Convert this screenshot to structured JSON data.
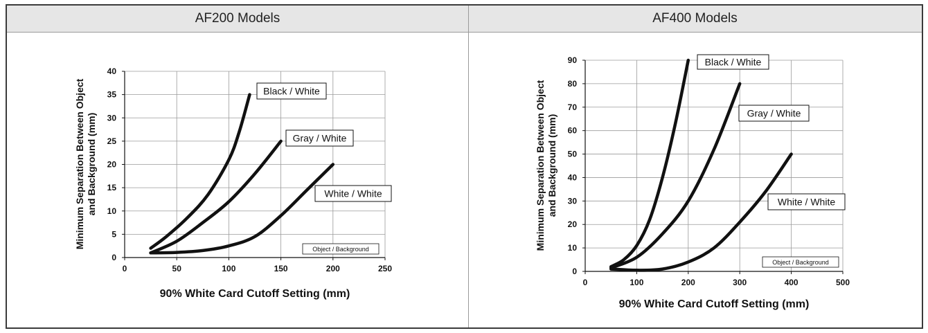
{
  "headers": {
    "left": "AF200 Models",
    "right": "AF400 Models"
  },
  "chart_data": [
    {
      "type": "line",
      "title": "AF200 Models",
      "xlabel": "90% White Card Cutoff Setting (mm)",
      "ylabel_lines": [
        "Minimum Separation Between Object",
        "and Background (mm)"
      ],
      "xlim": [
        0,
        250
      ],
      "ylim": [
        0,
        40
      ],
      "xticks": [
        0,
        50,
        100,
        150,
        200,
        250
      ],
      "yticks": [
        0,
        5,
        10,
        15,
        20,
        25,
        30,
        35,
        40
      ],
      "grid": true,
      "legend_note": "Object / Background",
      "series": [
        {
          "name": "Black / White",
          "x": [
            25,
            40,
            60,
            80,
            100,
            110,
            120
          ],
          "y": [
            2,
            4.5,
            8.5,
            13.5,
            21,
            27,
            35
          ]
        },
        {
          "name": "Gray / White",
          "x": [
            25,
            50,
            75,
            100,
            125,
            150
          ],
          "y": [
            1,
            3.5,
            7.5,
            12,
            18,
            25
          ]
        },
        {
          "name": "White / White",
          "x": [
            25,
            50,
            75,
            100,
            125,
            150,
            175,
            200
          ],
          "y": [
            1,
            1.1,
            1.5,
            2.5,
            4.5,
            9,
            14.5,
            20
          ]
        }
      ]
    },
    {
      "type": "line",
      "title": "AF400 Models",
      "xlabel": "90% White Card Cutoff Setting (mm)",
      "ylabel_lines": [
        "Minimum Separation Between Object",
        "and Background (mm)"
      ],
      "xlim": [
        0,
        500
      ],
      "ylim": [
        0,
        90
      ],
      "xticks": [
        0,
        100,
        200,
        300,
        400,
        500
      ],
      "yticks": [
        0,
        10,
        20,
        30,
        40,
        50,
        60,
        70,
        80,
        90
      ],
      "grid": true,
      "legend_note": "Object / Background",
      "series": [
        {
          "name": "Black / White",
          "x": [
            50,
            75,
            100,
            125,
            150,
            175,
            200
          ],
          "y": [
            2,
            5,
            11,
            22,
            40,
            63,
            90
          ]
        },
        {
          "name": "Gray / White",
          "x": [
            50,
            100,
            150,
            200,
            250,
            300
          ],
          "y": [
            1.5,
            6,
            16,
            30,
            52,
            80
          ]
        },
        {
          "name": "White / White",
          "x": [
            50,
            100,
            150,
            200,
            250,
            300,
            350,
            400
          ],
          "y": [
            1,
            0.5,
            1,
            4,
            10,
            21,
            34,
            50
          ]
        }
      ]
    }
  ]
}
